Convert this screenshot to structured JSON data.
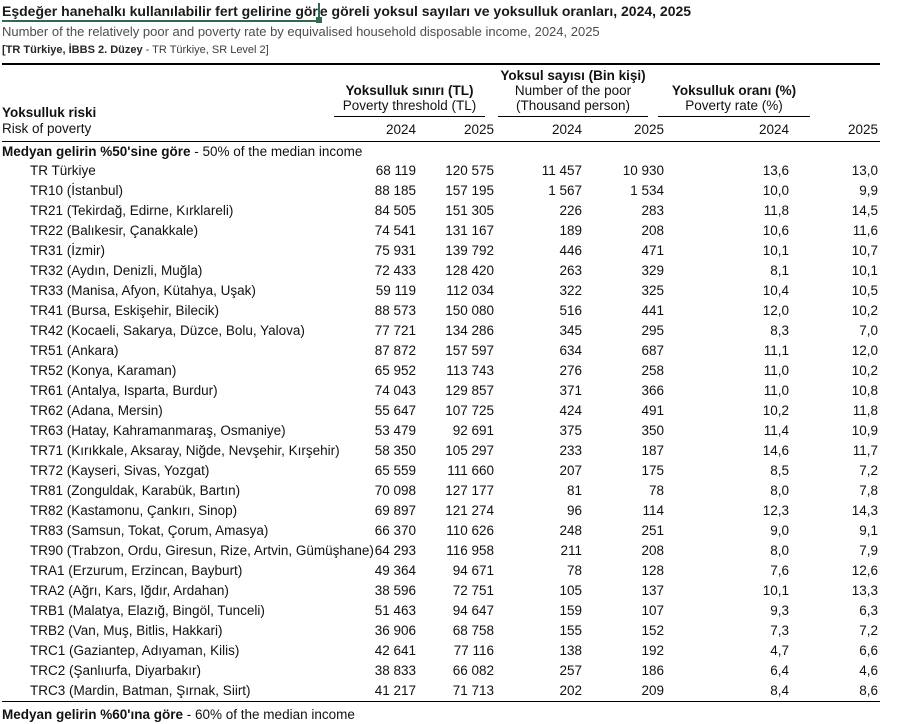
{
  "header": {
    "title_marked": "Eşdeğer hanehalkı kullanılabilir fert gelirine gör",
    "title_rest": "e göreli yoksul sayıları ve yoksulluk oranları, 2024, 2025",
    "subtitle": "Number of the relatively poor and poverty rate by equivalised household disposable income, 2024, 2025",
    "scope_bold": "[TR Türkiye, İBBS 2. Düzey",
    "scope_rest": " - TR Türkiye, SR Level 2]",
    "annotation_color": "#2E6B4E"
  },
  "table": {
    "row_header": {
      "tr": "Yoksulluk riski",
      "en": "Risk of poverty"
    },
    "groups": [
      {
        "tr": "Yoksulluk sınırı (TL)",
        "en1": "Poverty threshold (TL)",
        "en2": ""
      },
      {
        "tr": "Yoksul sayısı (Bin kişi)",
        "en1": "Number of the poor",
        "en2": "(Thousand person)"
      },
      {
        "tr": "Yoksulluk oranı (%)",
        "en1": "Poverty rate (%)",
        "en2": ""
      }
    ],
    "years": [
      "2024",
      "2025",
      "2024",
      "2025",
      "2024",
      "2025"
    ],
    "section1": {
      "bold": "Medyan gelirin %50'sine göre",
      "rest": " - 50% of the median income"
    },
    "section2": {
      "bold": "Medyan gelirin %60'ına göre",
      "rest": " - 60% of the median income"
    },
    "rows": [
      {
        "region": "TR Türkiye",
        "values": [
          "68 119",
          "120 575",
          "11 457",
          "10 930",
          "13,6",
          "13,0"
        ]
      },
      {
        "region": "TR10 (İstanbul)",
        "values": [
          "88 185",
          "157 195",
          "1 567",
          "1 534",
          "10,0",
          "9,9"
        ]
      },
      {
        "region": "TR21 (Tekirdağ, Edirne, Kırklareli)",
        "values": [
          "84 505",
          "151 305",
          "226",
          "283",
          "11,8",
          "14,5"
        ]
      },
      {
        "region": "TR22 (Balıkesir, Çanakkale)",
        "values": [
          "74 541",
          "131 167",
          "189",
          "208",
          "10,6",
          "11,6"
        ]
      },
      {
        "region": "TR31 (İzmir)",
        "values": [
          "75 931",
          "139 792",
          "446",
          "471",
          "10,1",
          "10,7"
        ]
      },
      {
        "region": "TR32 (Aydın, Denizli, Muğla)",
        "values": [
          "72 433",
          "128 420",
          "263",
          "329",
          "8,1",
          "10,1"
        ]
      },
      {
        "region": "TR33 (Manisa, Afyon, Kütahya, Uşak)",
        "values": [
          "59 119",
          "112 034",
          "322",
          "325",
          "10,4",
          "10,5"
        ]
      },
      {
        "region": "TR41 (Bursa, Eskişehir, Bilecik)",
        "values": [
          "88 573",
          "150 080",
          "516",
          "441",
          "12,0",
          "10,2"
        ]
      },
      {
        "region": "TR42 (Kocaeli, Sakarya, Düzce, Bolu, Yalova)",
        "values": [
          "77 721",
          "134 286",
          "345",
          "295",
          "8,3",
          "7,0"
        ]
      },
      {
        "region": "TR51 (Ankara)",
        "values": [
          "87 872",
          "157 597",
          "634",
          "687",
          "11,1",
          "12,0"
        ]
      },
      {
        "region": "TR52 (Konya, Karaman)",
        "values": [
          "65 952",
          "113 743",
          "276",
          "258",
          "11,0",
          "10,2"
        ]
      },
      {
        "region": "TR61 (Antalya, Isparta, Burdur)",
        "values": [
          "74 043",
          "129 857",
          "371",
          "366",
          "11,0",
          "10,8"
        ]
      },
      {
        "region": "TR62 (Adana, Mersin)",
        "values": [
          "55 647",
          "107 725",
          "424",
          "491",
          "10,2",
          "11,8"
        ]
      },
      {
        "region": "TR63 (Hatay, Kahramanmaraş, Osmaniye)",
        "values": [
          "53 479",
          "92 691",
          "375",
          "350",
          "11,4",
          "10,9"
        ]
      },
      {
        "region": "TR71 (Kırıkkale, Aksaray, Niğde, Nevşehir, Kırşehir)",
        "values": [
          "58 350",
          "105 297",
          "233",
          "187",
          "14,6",
          "11,7"
        ]
      },
      {
        "region": "TR72 (Kayseri, Sivas, Yozgat)",
        "values": [
          "65 559",
          "111 660",
          "207",
          "175",
          "8,5",
          "7,2"
        ]
      },
      {
        "region": "TR81 (Zonguldak, Karabük, Bartın)",
        "values": [
          "70 098",
          "127 177",
          "81",
          "78",
          "8,0",
          "7,8"
        ]
      },
      {
        "region": "TR82 (Kastamonu, Çankırı, Sinop)",
        "values": [
          "69 897",
          "121 274",
          "96",
          "114",
          "12,3",
          "14,3"
        ]
      },
      {
        "region": "TR83 (Samsun, Tokat, Çorum, Amasya)",
        "values": [
          "66 370",
          "110 626",
          "248",
          "251",
          "9,0",
          "9,1"
        ]
      },
      {
        "region": "TR90 (Trabzon, Ordu, Giresun, Rize, Artvin, Gümüşhane)",
        "values": [
          "64 293",
          "116 958",
          "211",
          "208",
          "8,0",
          "7,9"
        ]
      },
      {
        "region": "TRA1 (Erzurum, Erzincan, Bayburt)",
        "values": [
          "49 364",
          "94 671",
          "78",
          "128",
          "7,6",
          "12,6"
        ]
      },
      {
        "region": "TRA2 (Ağrı, Kars, Iğdır, Ardahan)",
        "values": [
          "38 596",
          "72 751",
          "105",
          "137",
          "10,1",
          "13,3"
        ]
      },
      {
        "region": "TRB1 (Malatya, Elazığ, Bingöl, Tunceli)",
        "values": [
          "51 463",
          "94 647",
          "159",
          "107",
          "9,3",
          "6,3"
        ]
      },
      {
        "region": "TRB2 (Van, Muş, Bitlis, Hakkari)",
        "values": [
          "36 906",
          "68 758",
          "155",
          "152",
          "7,3",
          "7,2"
        ]
      },
      {
        "region": "TRC1 (Gaziantep, Adıyaman, Kilis)",
        "values": [
          "42 641",
          "77 116",
          "138",
          "192",
          "4,7",
          "6,6"
        ]
      },
      {
        "region": "TRC2 (Şanlıurfa, Diyarbakır)",
        "values": [
          "38 833",
          "66 082",
          "257",
          "186",
          "6,4",
          "4,6"
        ]
      },
      {
        "region": "TRC3 (Mardin, Batman, Şırnak, Siirt)",
        "values": [
          "41 217",
          "71 713",
          "202",
          "209",
          "8,4",
          "8,6"
        ]
      }
    ]
  }
}
